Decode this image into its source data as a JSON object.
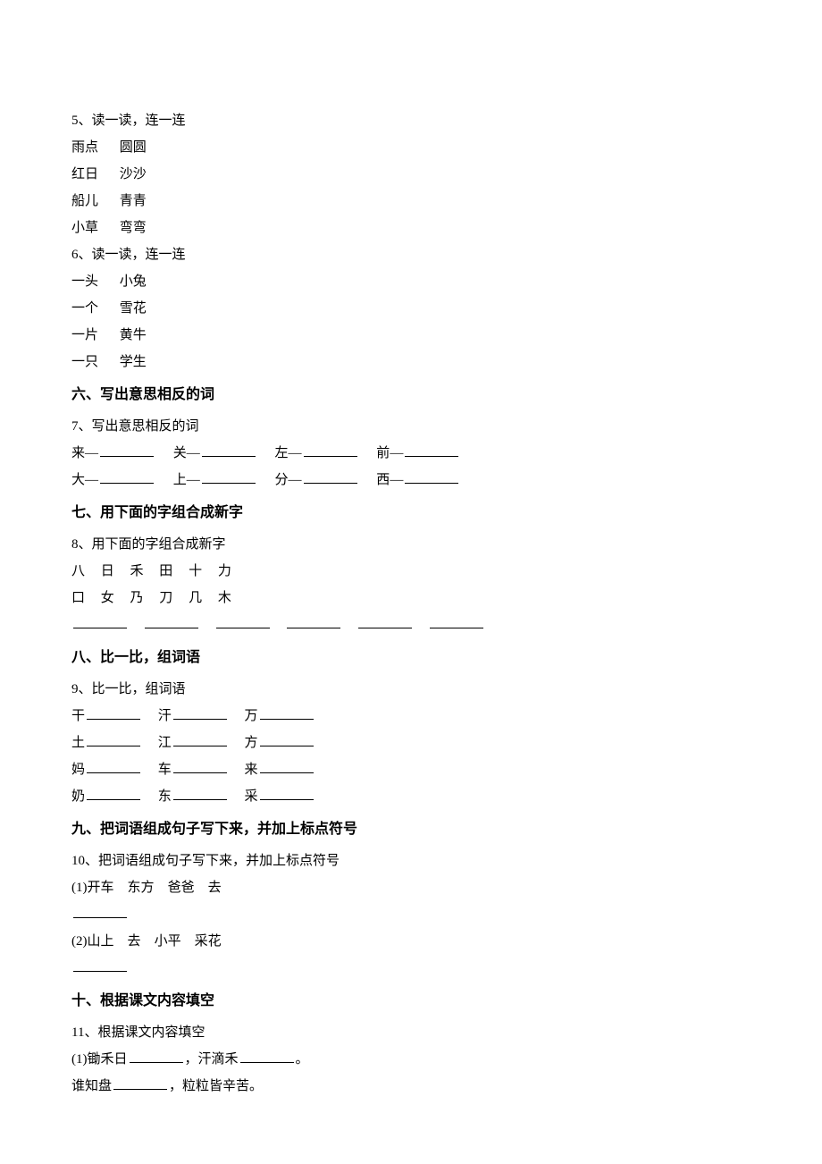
{
  "q5": {
    "title": "5、读一读，连一连",
    "pairs": [
      {
        "left": "雨点",
        "right": "圆圆"
      },
      {
        "left": "红日",
        "right": "沙沙"
      },
      {
        "left": "船儿",
        "right": "青青"
      },
      {
        "left": "小草",
        "right": "弯弯"
      }
    ]
  },
  "q6": {
    "title": "6、读一读，连一连",
    "pairs": [
      {
        "left": "一头",
        "right": "小兔"
      },
      {
        "left": "一个",
        "right": "雪花"
      },
      {
        "left": "一片",
        "right": "黄牛"
      },
      {
        "left": "一只",
        "right": "学生"
      }
    ]
  },
  "sec6": {
    "heading": "六、写出意思相反的词"
  },
  "q7": {
    "title": "7、写出意思相反的词",
    "row1": [
      {
        "char": "来"
      },
      {
        "char": "关"
      },
      {
        "char": "左"
      },
      {
        "char": "前"
      }
    ],
    "row2": [
      {
        "char": "大"
      },
      {
        "char": "上"
      },
      {
        "char": "分"
      },
      {
        "char": "西"
      }
    ],
    "dash": "—"
  },
  "sec7": {
    "heading": "七、用下面的字组合成新字"
  },
  "q8": {
    "title": "8、用下面的字组合成新字",
    "row1_chars": [
      "八",
      "日",
      "禾",
      "田",
      "十",
      "力"
    ],
    "row2_chars": [
      "口",
      "女",
      "乃",
      "刀",
      "几",
      "木"
    ],
    "blank_count": 6
  },
  "sec8": {
    "heading": "八、比一比，组词语"
  },
  "q9": {
    "title": "9、比一比，组词语",
    "rows": [
      [
        {
          "char": "干"
        },
        {
          "char": "汗"
        },
        {
          "char": "万"
        }
      ],
      [
        {
          "char": "土"
        },
        {
          "char": "江"
        },
        {
          "char": "方"
        }
      ],
      [
        {
          "char": "妈"
        },
        {
          "char": "车"
        },
        {
          "char": "来"
        }
      ],
      [
        {
          "char": "奶"
        },
        {
          "char": "东"
        },
        {
          "char": "采"
        }
      ]
    ]
  },
  "sec9": {
    "heading": "九、把词语组成句子写下来，并加上标点符号"
  },
  "q10": {
    "title": "10、把词语组成句子写下来，并加上标点符号",
    "item1_label": "(1)",
    "item1_words": [
      "开车",
      "东方",
      "爸爸",
      "去"
    ],
    "item2_label": "(2)",
    "item2_words": [
      "山上",
      "去",
      "小平",
      "采花"
    ]
  },
  "sec10": {
    "heading": "十、根据课文内容填空"
  },
  "q11": {
    "title": "11、根据课文内容填空",
    "line1_label": "(1)",
    "line1_a": "锄禾日",
    "line1_b": "，汗滴禾",
    "line1_c": "。",
    "line2_a": "谁知盘",
    "line2_b": "，粒粒皆辛苦。"
  },
  "colors": {
    "text": "#000000",
    "background": "#ffffff"
  },
  "typography": {
    "body_fontsize": 15,
    "heading_fontsize": 16,
    "line_height": 2.0,
    "font_family": "SimSun"
  }
}
